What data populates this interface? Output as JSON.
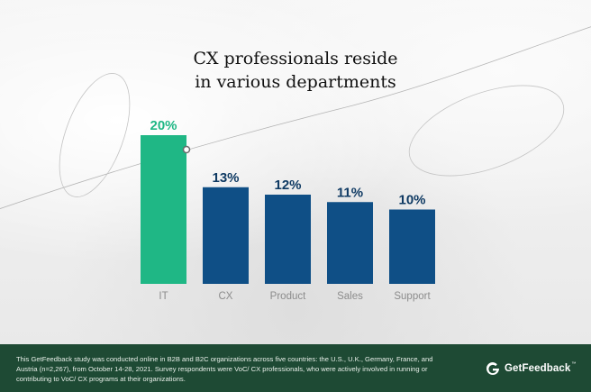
{
  "title": {
    "line1": "CX professionals reside",
    "line2": "in various departments"
  },
  "chart_data": {
    "type": "bar",
    "categories": [
      "IT",
      "CX",
      "Product",
      "Sales",
      "Support"
    ],
    "values": [
      20,
      13,
      12,
      11,
      10
    ],
    "value_labels": [
      "20%",
      "13%",
      "12%",
      "11%",
      "10%"
    ],
    "title": "CX professionals reside in various departments",
    "xlabel": "",
    "ylabel": "",
    "ylim": [
      0,
      20
    ],
    "highlight_category": "IT",
    "grid": false,
    "legend": "none",
    "colors": {
      "highlight": "#1fb785",
      "default": "#0f4f86",
      "highlight_label": "#1fb785",
      "default_label": "#0f3a63",
      "category_label": "#8c8c8c"
    }
  },
  "footer": {
    "note": "This GetFeedback study was conducted online in B2B and B2C organizations across five countries: the U.S., U.K., Germany, France, and Austria (n=2,267), from October 14-28, 2021. Survey respondents were VoC/ CX professionals, who were actively involved in running or contributing to VoC/ CX programs at their organizations.",
    "brand": "GetFeedback",
    "brand_mark": "™",
    "logo_icon": "getfeedback-logo-icon",
    "background": "#1e4a34"
  }
}
